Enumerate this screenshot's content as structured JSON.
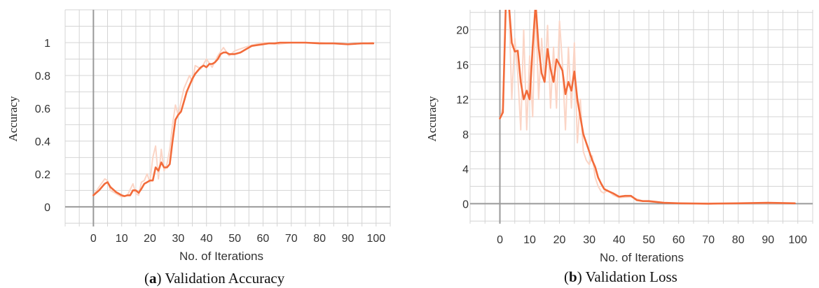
{
  "figure": {
    "captions": [
      {
        "letter": "a",
        "text": "Validation Accuracy"
      },
      {
        "letter": "b",
        "text": "Validation Loss"
      }
    ]
  },
  "colors": {
    "line": "#f26b3a",
    "raw_line": "#fbd5c6",
    "grid": "#d4d4d4",
    "axis": "#9a9a9a"
  },
  "chart_data": [
    {
      "type": "line",
      "title": "",
      "xlabel": "No. of Iterations",
      "ylabel": "Accuracy",
      "xlim": [
        -10,
        105
      ],
      "ylim": [
        -0.12,
        1.2
      ],
      "x_ticks": [
        0,
        10,
        20,
        30,
        40,
        50,
        60,
        70,
        80,
        90,
        100
      ],
      "y_ticks": [
        0,
        0.2,
        0.4,
        0.6,
        0.8,
        1
      ],
      "y_tick_labels": [
        "0",
        "0.2",
        "0.4",
        "0.6",
        "0.8",
        "1"
      ],
      "grid": true,
      "series": [
        {
          "role": "smoothed",
          "x": [
            0,
            2,
            4,
            5,
            6,
            8,
            10,
            11,
            12,
            13,
            14,
            15,
            16,
            17,
            18,
            19,
            20,
            21,
            22,
            23,
            24,
            25,
            26,
            27,
            28,
            29,
            30,
            31,
            32,
            33,
            34,
            35,
            36,
            37,
            38,
            39,
            40,
            41,
            42,
            43,
            44,
            45,
            46,
            47,
            48,
            49,
            50,
            52,
            54,
            56,
            58,
            60,
            62,
            64,
            66,
            70,
            75,
            80,
            85,
            90,
            95,
            99
          ],
          "y": [
            0.07,
            0.1,
            0.14,
            0.15,
            0.12,
            0.09,
            0.07,
            0.065,
            0.07,
            0.07,
            0.1,
            0.1,
            0.085,
            0.11,
            0.14,
            0.15,
            0.16,
            0.16,
            0.24,
            0.22,
            0.27,
            0.24,
            0.24,
            0.26,
            0.4,
            0.53,
            0.56,
            0.58,
            0.64,
            0.7,
            0.74,
            0.78,
            0.81,
            0.83,
            0.85,
            0.86,
            0.85,
            0.87,
            0.87,
            0.88,
            0.9,
            0.93,
            0.94,
            0.94,
            0.93,
            0.93,
            0.93,
            0.94,
            0.96,
            0.98,
            0.985,
            0.99,
            0.995,
            0.995,
            1.0,
            1.0,
            1.0,
            0.995,
            0.995,
            0.99,
            0.995,
            0.995
          ]
        },
        {
          "role": "raw",
          "x": [
            0,
            2,
            4,
            5,
            6,
            8,
            10,
            12,
            14,
            15,
            16,
            17,
            18,
            19,
            20,
            21,
            22,
            23,
            24,
            25,
            26,
            27,
            28,
            29,
            30,
            31,
            32,
            33,
            34,
            35,
            36,
            38,
            40,
            42,
            44,
            46,
            48,
            50,
            55,
            60,
            65,
            70,
            80,
            90,
            99
          ],
          "y": [
            0.07,
            0.12,
            0.17,
            0.16,
            0.1,
            0.08,
            0.06,
            0.07,
            0.14,
            0.08,
            0.07,
            0.15,
            0.16,
            0.2,
            0.15,
            0.3,
            0.37,
            0.17,
            0.35,
            0.22,
            0.26,
            0.35,
            0.5,
            0.62,
            0.56,
            0.64,
            0.72,
            0.76,
            0.8,
            0.76,
            0.86,
            0.84,
            0.9,
            0.85,
            0.92,
            0.97,
            0.92,
            0.95,
            0.98,
            1.0,
            0.99,
            1.0,
            1.0,
            0.99,
            1.0
          ]
        }
      ]
    },
    {
      "type": "line",
      "title": "",
      "xlabel": "No. of Iterations",
      "ylabel": "Accuracy",
      "xlim": [
        -10,
        105
      ],
      "ylim": [
        -2.3,
        22.3
      ],
      "x_ticks": [
        0,
        10,
        20,
        30,
        40,
        50,
        60,
        70,
        80,
        90,
        100
      ],
      "y_ticks": [
        0,
        4,
        8,
        12,
        16,
        20
      ],
      "y_tick_labels": [
        "0",
        "4",
        "8",
        "12",
        "16",
        "20"
      ],
      "grid": true,
      "series": [
        {
          "role": "smoothed",
          "x": [
            0,
            1,
            2,
            3,
            4,
            5,
            6,
            7,
            8,
            9,
            10,
            11,
            12,
            13,
            14,
            15,
            16,
            17,
            18,
            19,
            20,
            21,
            22,
            23,
            24,
            25,
            26,
            27,
            28,
            29,
            30,
            31,
            32,
            33,
            34,
            35,
            36,
            38,
            40,
            42,
            44,
            46,
            48,
            50,
            55,
            60,
            70,
            80,
            90,
            99
          ],
          "y": [
            9.8,
            10.5,
            23,
            23,
            18.5,
            17.5,
            17.6,
            14,
            12,
            13,
            12,
            18,
            23,
            18,
            15,
            14,
            17.8,
            15.5,
            14,
            16.6,
            16,
            15.3,
            12.6,
            14,
            13,
            15.2,
            12,
            10,
            8,
            7,
            6,
            5,
            4.2,
            3,
            2.3,
            1.7,
            1.5,
            1.2,
            0.8,
            0.9,
            0.9,
            0.4,
            0.3,
            0.3,
            0.1,
            0.05,
            0.0,
            0.05,
            0.1,
            0.05
          ]
        },
        {
          "role": "raw",
          "x": [
            0,
            1,
            2,
            3,
            4,
            5,
            6,
            7,
            8,
            9,
            10,
            11,
            12,
            13,
            14,
            15,
            16,
            17,
            18,
            19,
            20,
            21,
            22,
            23,
            24,
            25,
            26,
            27,
            28,
            29,
            30,
            31,
            32,
            33,
            34,
            35,
            36,
            38,
            40,
            44,
            48,
            55,
            60,
            99
          ],
          "y": [
            9.8,
            11,
            23,
            23,
            12,
            19,
            15,
            8.5,
            20,
            8.5,
            17,
            10,
            23,
            12,
            19,
            14,
            20.5,
            11,
            18,
            11,
            21,
            16,
            8.5,
            18,
            11,
            18.5,
            7,
            12,
            6,
            5,
            4.5,
            5.5,
            3,
            2,
            1.4,
            1.2,
            1.6,
            1.0,
            0.7,
            0.8,
            0.3,
            0.1,
            0.05,
            0.05
          ]
        }
      ]
    }
  ]
}
